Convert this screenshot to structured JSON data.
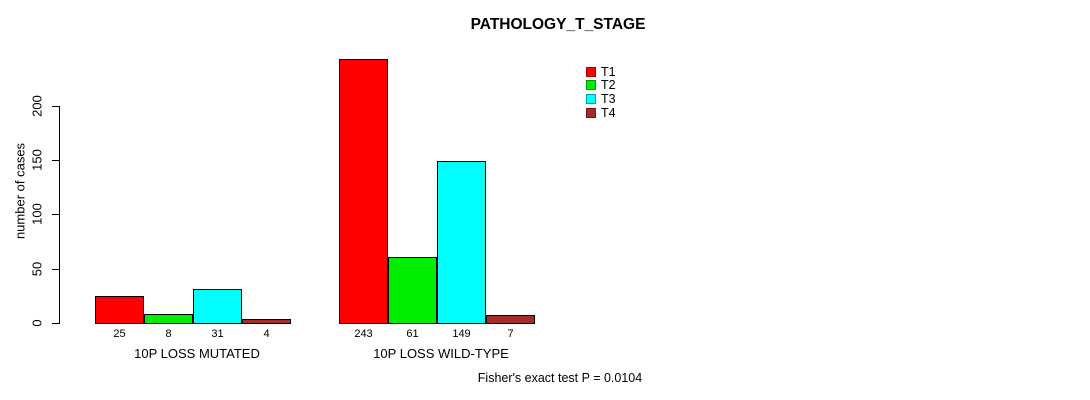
{
  "title": "PATHOLOGY_T_STAGE",
  "footnote": "Fisher's exact test P = 0.0104",
  "chart_data": {
    "type": "bar",
    "title": "PATHOLOGY_T_STAGE",
    "xlabel": "",
    "ylabel": "number of cases",
    "categories": [
      "10P LOSS MUTATED",
      "10P LOSS WILD-TYPE"
    ],
    "series": [
      {
        "name": "T1",
        "color": "#FF0000",
        "values": [
          25,
          243
        ]
      },
      {
        "name": "T2",
        "color": "#00EE00",
        "values": [
          8,
          61
        ]
      },
      {
        "name": "T3",
        "color": "#00FFFF",
        "values": [
          31,
          149
        ]
      },
      {
        "name": "T4",
        "color": "#A52A2A",
        "values": [
          4,
          7
        ]
      }
    ],
    "bar_value_labels": [
      [
        "25",
        "8",
        "31",
        "4"
      ],
      [
        "243",
        "61",
        "149",
        "7"
      ]
    ],
    "yticks": [
      0,
      50,
      100,
      150,
      200
    ],
    "ylim": [
      0,
      200
    ],
    "grid": false,
    "legend_position": "top-right",
    "legend_entries": [
      "T1",
      "T2",
      "T3",
      "T4"
    ],
    "annotation": "Fisher's exact test P = 0.0104",
    "background": "#FFFFFF",
    "axis_color": "#000000",
    "bar_border_color": "#000000"
  }
}
